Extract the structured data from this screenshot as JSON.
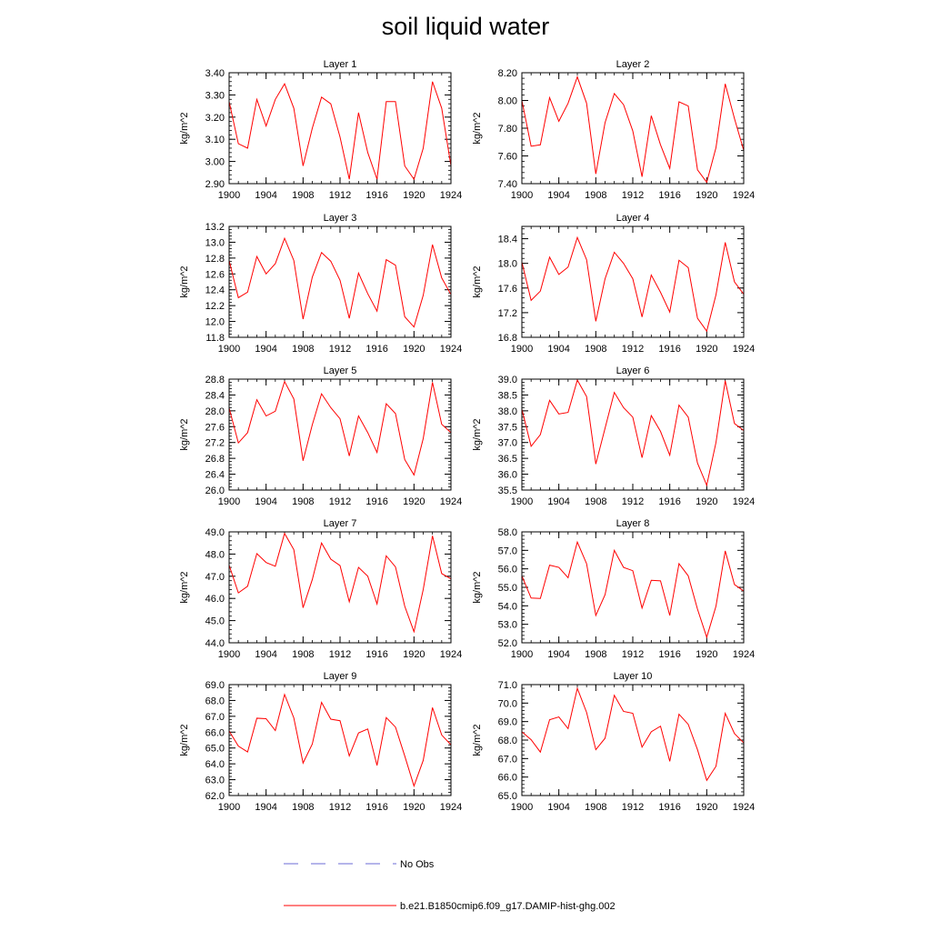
{
  "title": "soil liquid water",
  "legend": {
    "entries": [
      {
        "label": "No Obs",
        "color": "#6b6bd6",
        "style": "dashed"
      },
      {
        "label": "b.e21.B1850cmip6.f09_g17.DAMIP-hist-ghg.002",
        "color": "#ff0000",
        "style": "solid"
      }
    ]
  },
  "chart_data": [
    {
      "type": "line",
      "title": "Layer 1",
      "ylabel": "kg/m^2",
      "x": [
        1900,
        1901,
        1902,
        1903,
        1904,
        1905,
        1906,
        1907,
        1908,
        1909,
        1910,
        1911,
        1912,
        1913,
        1914,
        1915,
        1916,
        1917,
        1918,
        1919,
        1920,
        1921,
        1922,
        1923,
        1924
      ],
      "xlim": [
        1900,
        1924
      ],
      "xticks": [
        "1900",
        "1904",
        "1908",
        "1912",
        "1916",
        "1920",
        "1924"
      ],
      "ylim": [
        2.9,
        3.4
      ],
      "yticks": [
        "2.90",
        "3.00",
        "3.10",
        "3.20",
        "3.30",
        "3.40"
      ],
      "series": [
        {
          "color": "#ff0000",
          "values": [
            3.27,
            3.08,
            3.06,
            3.28,
            3.16,
            3.28,
            3.35,
            3.24,
            2.98,
            3.15,
            3.29,
            3.26,
            3.11,
            2.92,
            3.22,
            3.04,
            2.92,
            3.27,
            3.27,
            2.98,
            2.92,
            3.06,
            3.36,
            3.24,
            2.98
          ]
        }
      ]
    },
    {
      "type": "line",
      "title": "Layer 2",
      "ylabel": "kg/m^2",
      "x": [
        1900,
        1901,
        1902,
        1903,
        1904,
        1905,
        1906,
        1907,
        1908,
        1909,
        1910,
        1911,
        1912,
        1913,
        1914,
        1915,
        1916,
        1917,
        1918,
        1919,
        1920,
        1921,
        1922,
        1923,
        1924
      ],
      "xlim": [
        1900,
        1924
      ],
      "xticks": [
        "1900",
        "1904",
        "1908",
        "1912",
        "1916",
        "1920",
        "1924"
      ],
      "ylim": [
        7.4,
        8.2
      ],
      "yticks": [
        "7.40",
        "7.60",
        "7.80",
        "8.00",
        "8.20"
      ],
      "series": [
        {
          "color": "#ff0000",
          "values": [
            8.0,
            7.67,
            7.68,
            8.02,
            7.85,
            7.98,
            8.17,
            7.98,
            7.47,
            7.84,
            8.05,
            7.97,
            7.78,
            7.45,
            7.89,
            7.68,
            7.51,
            7.99,
            7.96,
            7.5,
            7.41,
            7.66,
            8.12,
            7.87,
            7.64
          ]
        }
      ]
    },
    {
      "type": "line",
      "title": "Layer 3",
      "ylabel": "kg/m^2",
      "x": [
        1900,
        1901,
        1902,
        1903,
        1904,
        1905,
        1906,
        1907,
        1908,
        1909,
        1910,
        1911,
        1912,
        1913,
        1914,
        1915,
        1916,
        1917,
        1918,
        1919,
        1920,
        1921,
        1922,
        1923,
        1924
      ],
      "xlim": [
        1900,
        1924
      ],
      "xticks": [
        "1900",
        "1904",
        "1908",
        "1912",
        "1916",
        "1920",
        "1924"
      ],
      "ylim": [
        11.8,
        13.2
      ],
      "yticks": [
        "11.8",
        "12.0",
        "12.2",
        "12.4",
        "12.6",
        "12.8",
        "13.0",
        "13.2"
      ],
      "series": [
        {
          "color": "#ff0000",
          "values": [
            12.77,
            12.3,
            12.37,
            12.82,
            12.6,
            12.73,
            13.05,
            12.77,
            12.03,
            12.56,
            12.87,
            12.76,
            12.52,
            12.04,
            12.61,
            12.35,
            12.13,
            12.78,
            12.71,
            12.06,
            11.93,
            12.33,
            12.97,
            12.55,
            12.34
          ]
        }
      ]
    },
    {
      "type": "line",
      "title": "Layer 4",
      "ylabel": "kg/m^2",
      "x": [
        1900,
        1901,
        1902,
        1903,
        1904,
        1905,
        1906,
        1907,
        1908,
        1909,
        1910,
        1911,
        1912,
        1913,
        1914,
        1915,
        1916,
        1917,
        1918,
        1919,
        1920,
        1921,
        1922,
        1923,
        1924
      ],
      "xlim": [
        1900,
        1924
      ],
      "xticks": [
        "1900",
        "1904",
        "1908",
        "1912",
        "1916",
        "1920",
        "1924"
      ],
      "ylim": [
        16.8,
        18.6
      ],
      "yticks": [
        "16.8",
        "17.2",
        "17.6",
        "18.0",
        "18.4"
      ],
      "series": [
        {
          "color": "#ff0000",
          "values": [
            18.02,
            17.4,
            17.55,
            18.1,
            17.82,
            17.94,
            18.42,
            18.06,
            17.06,
            17.75,
            18.18,
            18.0,
            17.75,
            17.13,
            17.81,
            17.53,
            17.21,
            18.05,
            17.93,
            17.11,
            16.9,
            17.49,
            18.34,
            17.7,
            17.5
          ]
        }
      ]
    },
    {
      "type": "line",
      "title": "Layer 5",
      "ylabel": "kg/m^2",
      "x": [
        1900,
        1901,
        1902,
        1903,
        1904,
        1905,
        1906,
        1907,
        1908,
        1909,
        1910,
        1911,
        1912,
        1913,
        1914,
        1915,
        1916,
        1917,
        1918,
        1919,
        1920,
        1921,
        1922,
        1923,
        1924
      ],
      "xlim": [
        1900,
        1924
      ],
      "xticks": [
        "1900",
        "1904",
        "1908",
        "1912",
        "1916",
        "1920",
        "1924"
      ],
      "ylim": [
        26.0,
        28.8
      ],
      "yticks": [
        "26.0",
        "26.4",
        "26.8",
        "27.2",
        "27.6",
        "28.0",
        "28.4",
        "28.8"
      ],
      "series": [
        {
          "color": "#ff0000",
          "values": [
            28.07,
            27.19,
            27.45,
            28.28,
            27.87,
            27.99,
            28.74,
            28.3,
            26.74,
            27.65,
            28.43,
            28.08,
            27.8,
            26.86,
            27.87,
            27.45,
            26.95,
            28.18,
            27.93,
            26.77,
            26.38,
            27.3,
            28.72,
            27.66,
            27.45
          ]
        }
      ]
    },
    {
      "type": "line",
      "title": "Layer 6",
      "ylabel": "kg/m^2",
      "x": [
        1900,
        1901,
        1902,
        1903,
        1904,
        1905,
        1906,
        1907,
        1908,
        1909,
        1910,
        1911,
        1912,
        1913,
        1914,
        1915,
        1916,
        1917,
        1918,
        1919,
        1920,
        1921,
        1922,
        1923,
        1924
      ],
      "xlim": [
        1900,
        1924
      ],
      "xticks": [
        "1900",
        "1904",
        "1908",
        "1912",
        "1916",
        "1920",
        "1924"
      ],
      "ylim": [
        35.5,
        39.0
      ],
      "yticks": [
        "35.5",
        "36.0",
        "36.5",
        "37.0",
        "37.5",
        "38.0",
        "38.5",
        "39.0"
      ],
      "series": [
        {
          "color": "#ff0000",
          "values": [
            38.05,
            36.88,
            37.25,
            38.33,
            37.9,
            37.95,
            38.97,
            38.45,
            36.32,
            37.45,
            38.58,
            38.1,
            37.8,
            36.52,
            37.85,
            37.35,
            36.6,
            38.18,
            37.8,
            36.35,
            35.65,
            37.0,
            38.95,
            37.6,
            37.38
          ]
        }
      ]
    },
    {
      "type": "line",
      "title": "Layer 7",
      "ylabel": "kg/m^2",
      "x": [
        1900,
        1901,
        1902,
        1903,
        1904,
        1905,
        1906,
        1907,
        1908,
        1909,
        1910,
        1911,
        1912,
        1913,
        1914,
        1915,
        1916,
        1917,
        1918,
        1919,
        1920,
        1921,
        1922,
        1923,
        1924
      ],
      "xlim": [
        1900,
        1924
      ],
      "xticks": [
        "1900",
        "1904",
        "1908",
        "1912",
        "1916",
        "1920",
        "1924"
      ],
      "ylim": [
        44.0,
        49.0
      ],
      "yticks": [
        "44.0",
        "45.0",
        "46.0",
        "47.0",
        "48.0",
        "49.0"
      ],
      "series": [
        {
          "color": "#ff0000",
          "values": [
            47.5,
            46.25,
            46.55,
            48.02,
            47.62,
            47.45,
            48.93,
            48.2,
            45.58,
            46.85,
            48.5,
            47.77,
            47.48,
            45.85,
            47.4,
            47.0,
            45.75,
            47.92,
            47.42,
            45.65,
            44.5,
            46.4,
            48.82,
            47.12,
            46.88
          ]
        }
      ]
    },
    {
      "type": "line",
      "title": "Layer 8",
      "ylabel": "kg/m^2",
      "x": [
        1900,
        1901,
        1902,
        1903,
        1904,
        1905,
        1906,
        1907,
        1908,
        1909,
        1910,
        1911,
        1912,
        1913,
        1914,
        1915,
        1916,
        1917,
        1918,
        1919,
        1920,
        1921,
        1922,
        1923,
        1924
      ],
      "xlim": [
        1900,
        1924
      ],
      "xticks": [
        "1900",
        "1904",
        "1908",
        "1912",
        "1916",
        "1920",
        "1924"
      ],
      "ylim": [
        52.0,
        58.0
      ],
      "yticks": [
        "52.0",
        "53.0",
        "54.0",
        "55.0",
        "56.0",
        "57.0",
        "58.0"
      ],
      "series": [
        {
          "color": "#ff0000",
          "values": [
            55.62,
            54.42,
            54.4,
            56.2,
            56.08,
            55.52,
            57.45,
            56.28,
            53.48,
            54.6,
            57.0,
            56.08,
            55.9,
            53.88,
            55.38,
            55.35,
            53.48,
            56.28,
            55.62,
            53.82,
            52.3,
            53.98,
            56.97,
            55.15,
            54.8
          ]
        }
      ]
    },
    {
      "type": "line",
      "title": "Layer 9",
      "ylabel": "kg/m^2",
      "x": [
        1900,
        1901,
        1902,
        1903,
        1904,
        1905,
        1906,
        1907,
        1908,
        1909,
        1910,
        1911,
        1912,
        1913,
        1914,
        1915,
        1916,
        1917,
        1918,
        1919,
        1920,
        1921,
        1922,
        1923,
        1924
      ],
      "xlim": [
        1900,
        1924
      ],
      "xticks": [
        "1900",
        "1904",
        "1908",
        "1912",
        "1916",
        "1920",
        "1924"
      ],
      "ylim": [
        62.0,
        69.0
      ],
      "yticks": [
        "62.0",
        "63.0",
        "64.0",
        "65.0",
        "66.0",
        "67.0",
        "68.0",
        "69.0"
      ],
      "series": [
        {
          "color": "#ff0000",
          "values": [
            66.08,
            65.12,
            64.75,
            66.88,
            66.85,
            66.1,
            68.38,
            66.9,
            64.05,
            65.25,
            67.88,
            66.82,
            66.72,
            64.5,
            65.95,
            66.2,
            63.9,
            66.92,
            66.32,
            64.5,
            62.6,
            64.22,
            67.55,
            65.82,
            65.2
          ]
        }
      ]
    },
    {
      "type": "line",
      "title": "Layer 10",
      "ylabel": "kg/m^2",
      "x": [
        1900,
        1901,
        1902,
        1903,
        1904,
        1905,
        1906,
        1907,
        1908,
        1909,
        1910,
        1911,
        1912,
        1913,
        1914,
        1915,
        1916,
        1917,
        1918,
        1919,
        1920,
        1921,
        1922,
        1923,
        1924
      ],
      "xlim": [
        1900,
        1924
      ],
      "xticks": [
        "1900",
        "1904",
        "1908",
        "1912",
        "1916",
        "1920",
        "1924"
      ],
      "ylim": [
        65.0,
        71.0
      ],
      "yticks": [
        "65.0",
        "66.0",
        "67.0",
        "68.0",
        "69.0",
        "70.0",
        "71.0"
      ],
      "series": [
        {
          "color": "#ff0000",
          "values": [
            68.45,
            68.02,
            67.35,
            69.1,
            69.25,
            68.62,
            70.8,
            69.5,
            67.48,
            68.1,
            70.42,
            69.55,
            69.45,
            67.62,
            68.45,
            68.75,
            66.85,
            69.4,
            68.85,
            67.48,
            65.82,
            66.58,
            69.45,
            68.35,
            67.85
          ]
        }
      ]
    }
  ]
}
